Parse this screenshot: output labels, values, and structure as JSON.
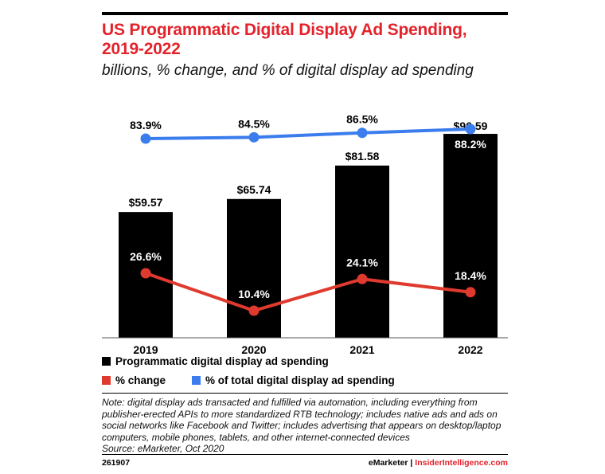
{
  "header": {
    "title": "US Programmatic Digital Display Ad Spending, 2019-2022",
    "subtitle": "billions, % change, and % of digital display ad spending"
  },
  "chart_data": {
    "type": "bar",
    "categories": [
      "2019",
      "2020",
      "2021",
      "2022"
    ],
    "series": [
      {
        "name": "Programmatic digital display ad spending",
        "kind": "bar",
        "color": "#000000",
        "values": [
          59.57,
          65.74,
          81.58,
          96.59
        ],
        "labels": [
          "$59.57",
          "$65.74",
          "$81.58",
          "$96.59"
        ]
      },
      {
        "name": "% change",
        "kind": "line",
        "color": "#e03a2f",
        "values": [
          26.6,
          10.4,
          24.1,
          18.4
        ],
        "labels": [
          "26.6%",
          "10.4%",
          "24.1%",
          "18.4%"
        ]
      },
      {
        "name": "% of total digital display ad spending",
        "kind": "line",
        "color": "#3b7ded",
        "values": [
          83.9,
          84.5,
          86.5,
          88.2
        ],
        "labels": [
          "83.9%",
          "84.5%",
          "86.5%",
          "88.2%"
        ]
      }
    ],
    "grid": false,
    "legend_position": "bottom"
  },
  "note": "Note: digital display ads transacted and fulfilled via automation, including everything from publisher-erected APIs to more standardized RTB technology; includes native ads and ads on social networks like Facebook and Twitter; includes advertising that appears on desktop/laptop computers, mobile phones, tablets, and other internet-connected devices",
  "source": "Source: eMarketer, Oct 2020",
  "footer": {
    "chart_id": "261907",
    "brand_left": "eMarketer",
    "brand_sep": "|",
    "brand_right": "InsiderIntelligence.com"
  }
}
